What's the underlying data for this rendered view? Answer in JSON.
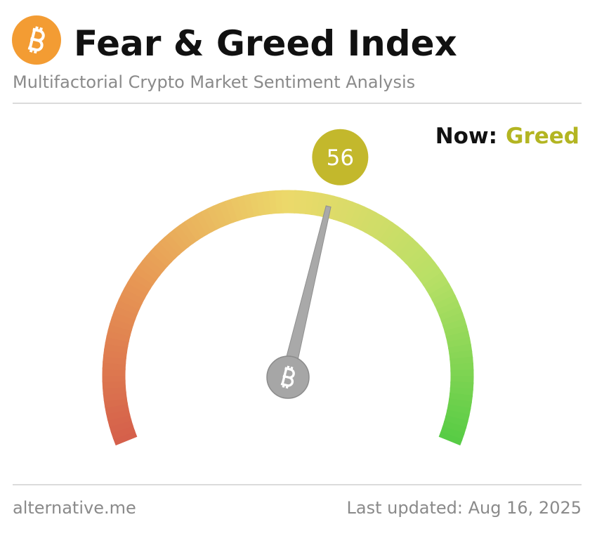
{
  "chart_data": {
    "type": "gauge",
    "title": "Fear & Greed Index",
    "subtitle": "Multifactorial Crypto Market Sentiment Analysis",
    "now_label": "Now:",
    "classification": "Greed",
    "classification_color": "#b3b522",
    "value": 56,
    "range": [
      0,
      100
    ],
    "bubble_color": "#c3b82c",
    "source": "alternative.me",
    "updated": "Last updated: Aug 16, 2025"
  }
}
